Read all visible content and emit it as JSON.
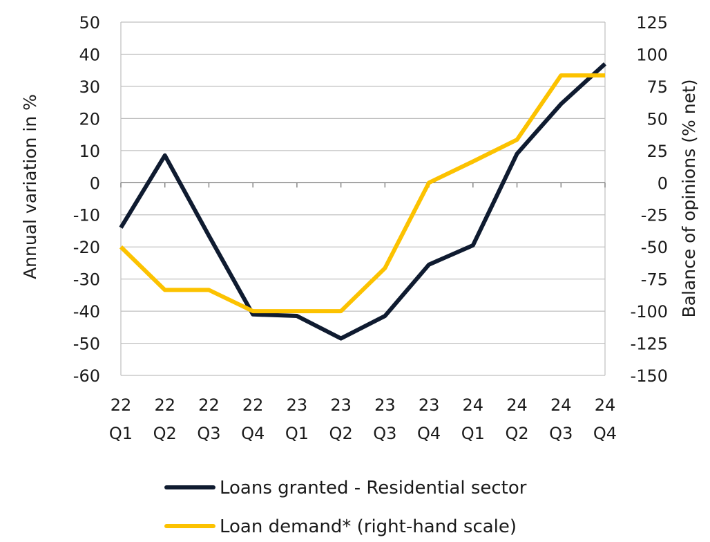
{
  "chart_data": {
    "type": "line",
    "title": "",
    "categories": [
      "22 Q1",
      "22 Q2",
      "22 Q3",
      "22 Q4",
      "23 Q1",
      "23 Q2",
      "23 Q3",
      "23 Q4",
      "24 Q1",
      "24 Q2",
      "24 Q3",
      "24 Q4"
    ],
    "x_tick_labels": [
      [
        "22",
        "Q1"
      ],
      [
        "22",
        "Q2"
      ],
      [
        "22",
        "Q3"
      ],
      [
        "22",
        "Q4"
      ],
      [
        "23",
        "Q1"
      ],
      [
        "23",
        "Q2"
      ],
      [
        "23",
        "Q3"
      ],
      [
        "23",
        "Q4"
      ],
      [
        "24",
        "Q1"
      ],
      [
        "24",
        "Q2"
      ],
      [
        "24",
        "Q3"
      ],
      [
        "24",
        "Q4"
      ]
    ],
    "ylabel_left": "Annual variation in %",
    "ylabel_right": "Balance of opinions (% net)",
    "ylim_left": [
      -60,
      50
    ],
    "ylim_right": [
      -150,
      125
    ],
    "yticks_left": [
      50,
      40,
      30,
      20,
      10,
      0,
      -10,
      -20,
      -30,
      -40,
      -50,
      -60
    ],
    "yticks_right": [
      125,
      100,
      75,
      50,
      25,
      0,
      -25,
      -50,
      -75,
      -100,
      -125,
      -150
    ],
    "grid": true,
    "legend_position": "bottom",
    "series": [
      {
        "name": "Loans granted - Residential sector",
        "axis": "left",
        "color": "#0f1b30",
        "values": [
          -14,
          8.5,
          -16.5,
          -41,
          -41.5,
          -48.5,
          -41.5,
          -25.5,
          -19.5,
          9,
          24.5,
          37
        ]
      },
      {
        "name": "Loan demand* (right-hand scale)",
        "axis": "right",
        "color": "#fcc200",
        "values": [
          -50,
          -83.5,
          -83.5,
          -100,
          -100,
          -100,
          -66.5,
          0,
          16.5,
          33.5,
          83.5,
          83.5
        ]
      }
    ]
  }
}
